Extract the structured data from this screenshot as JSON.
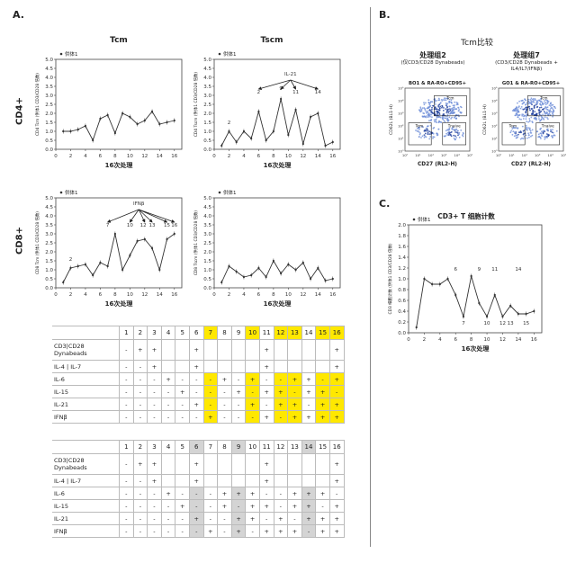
{
  "panel_a_letter": "A.",
  "panel_b_letter": "B.",
  "panel_c_letter": "C.",
  "row_labels": [
    "CD4+",
    "CD8+"
  ],
  "col_titles": [
    "Tcm",
    "Tscm"
  ],
  "legend_donor": "供体1",
  "chart_data": [
    {
      "type": "line",
      "id": "cd4-tcm",
      "title": "Tcm",
      "xlabel": "16次处理",
      "ylabel": "CD4 Tcm (供体1 CD3/CD28 倍数)",
      "ylim": [
        0,
        5
      ],
      "xlim": [
        0,
        17
      ],
      "xticks": [
        0,
        2,
        4,
        6,
        8,
        10,
        12,
        14,
        16
      ],
      "yticks": [
        0,
        0.5,
        1.0,
        1.5,
        2.0,
        2.5,
        3.0,
        3.5,
        4.0,
        4.5,
        5.0
      ],
      "series": [
        {
          "name": "供体1",
          "x": [
            1,
            2,
            3,
            4,
            5,
            6,
            7,
            8,
            9,
            10,
            11,
            12,
            13,
            14,
            15,
            16
          ],
          "y": [
            1.0,
            1.0,
            1.1,
            1.3,
            0.5,
            1.7,
            1.9,
            0.9,
            2.0,
            1.8,
            1.4,
            1.6,
            2.1,
            1.4,
            1.5,
            1.6
          ]
        }
      ],
      "annotations": []
    },
    {
      "type": "line",
      "id": "cd4-tscm",
      "title": "Tscm",
      "xlabel": "16次处理",
      "ylabel": "CD4 Tscm (供体1 CD3/CD28 倍数)",
      "ylim": [
        0,
        5
      ],
      "xlim": [
        0,
        17
      ],
      "xticks": [
        0,
        2,
        4,
        6,
        8,
        10,
        12,
        14,
        16
      ],
      "yticks": [
        0,
        0.5,
        1.0,
        1.5,
        2.0,
        2.5,
        3.0,
        3.5,
        4.0,
        4.5,
        5.0
      ],
      "series": [
        {
          "name": "供体1",
          "x": [
            1,
            2,
            3,
            4,
            5,
            6,
            7,
            8,
            9,
            10,
            11,
            12,
            13,
            14,
            15,
            16
          ],
          "y": [
            0.2,
            1.0,
            0.4,
            1.0,
            0.6,
            2.1,
            0.5,
            1.0,
            2.8,
            0.8,
            2.2,
            0.3,
            1.8,
            2.0,
            0.2,
            0.4
          ]
        }
      ],
      "annotations": [
        {
          "text": "IL-21",
          "x": 10.3,
          "y": 4.1
        },
        {
          "text": "2",
          "x": 6.0,
          "y": 3.1
        },
        {
          "text": "9",
          "x": 9.0,
          "y": 3.3
        },
        {
          "text": "11",
          "x": 11.0,
          "y": 3.1
        },
        {
          "text": "14",
          "x": 14.0,
          "y": 3.1
        },
        {
          "text": "2",
          "x": 2.0,
          "y": 1.4
        }
      ]
    },
    {
      "type": "line",
      "id": "cd8-tcm",
      "title": "",
      "xlabel": "16次处理",
      "ylabel": "CD8 Tcm (供体1 CD3/CD28 倍数)",
      "ylim": [
        0,
        5
      ],
      "xlim": [
        0,
        17
      ],
      "xticks": [
        0,
        2,
        4,
        6,
        8,
        10,
        12,
        14,
        16
      ],
      "yticks": [
        0,
        0.5,
        1.0,
        1.5,
        2.0,
        2.5,
        3.0,
        3.5,
        4.0,
        4.5,
        5.0
      ],
      "series": [
        {
          "name": "供体1",
          "x": [
            1,
            2,
            3,
            4,
            5,
            6,
            7,
            8,
            9,
            10,
            11,
            12,
            13,
            14,
            15,
            16
          ],
          "y": [
            0.3,
            1.1,
            1.2,
            1.3,
            0.7,
            1.4,
            1.2,
            3.0,
            1.0,
            1.8,
            2.6,
            2.7,
            2.2,
            1.0,
            2.7,
            3.0
          ]
        }
      ],
      "annotations": [
        {
          "text": "IFNβ",
          "x": 11.2,
          "y": 4.6
        },
        {
          "text": "7",
          "x": 7.0,
          "y": 3.4
        },
        {
          "text": "10",
          "x": 10.0,
          "y": 3.4
        },
        {
          "text": "12",
          "x": 11.8,
          "y": 3.4
        },
        {
          "text": "13",
          "x": 13.0,
          "y": 3.4
        },
        {
          "text": "15",
          "x": 15.0,
          "y": 3.4
        },
        {
          "text": "16",
          "x": 16.0,
          "y": 3.4
        },
        {
          "text": "2",
          "x": 2.0,
          "y": 1.5
        }
      ]
    },
    {
      "type": "line",
      "id": "cd8-tscm",
      "title": "",
      "xlabel": "16次处理",
      "ylabel": "CD8 Tscm (供体1 CD3/CD28 倍数)",
      "ylim": [
        0,
        5
      ],
      "xlim": [
        0,
        17
      ],
      "xticks": [
        0,
        2,
        4,
        6,
        8,
        10,
        12,
        14,
        16
      ],
      "yticks": [
        0,
        0.5,
        1.0,
        1.5,
        2.0,
        2.5,
        3.0,
        3.5,
        4.0,
        4.5,
        5.0
      ],
      "series": [
        {
          "name": "供体1",
          "x": [
            1,
            2,
            3,
            4,
            5,
            6,
            7,
            8,
            9,
            10,
            11,
            12,
            13,
            14,
            15,
            16
          ],
          "y": [
            0.3,
            1.2,
            0.9,
            0.6,
            0.7,
            1.1,
            0.6,
            1.5,
            0.8,
            1.3,
            1.0,
            1.4,
            0.5,
            1.1,
            0.4,
            0.5
          ]
        }
      ],
      "annotations": []
    },
    {
      "type": "line",
      "id": "cd3-count",
      "title": "CD3+ T 细胞计数",
      "xlabel": "16次处理",
      "ylabel": "CD3 细胞计数 (供体1 CD3/CD28 倍数)",
      "ylim": [
        0,
        2.0
      ],
      "xlim": [
        0,
        17
      ],
      "xticks": [
        0,
        2,
        4,
        6,
        8,
        10,
        12,
        14,
        16
      ],
      "yticks": [
        0,
        0.2,
        0.4,
        0.6,
        0.8,
        1.0,
        1.2,
        1.4,
        1.6,
        1.8,
        2.0
      ],
      "series": [
        {
          "name": "供体1",
          "x": [
            1,
            2,
            3,
            4,
            5,
            6,
            7,
            8,
            9,
            10,
            11,
            12,
            13,
            14,
            15,
            16
          ],
          "y": [
            0.1,
            1.0,
            0.9,
            0.9,
            1.0,
            0.7,
            0.3,
            1.05,
            0.55,
            0.3,
            0.7,
            0.3,
            0.5,
            0.35,
            0.35,
            0.4
          ]
        }
      ],
      "annotations": [
        {
          "text": "6",
          "x": 6.0,
          "y": 1.15
        },
        {
          "text": "9",
          "x": 9.0,
          "y": 1.15
        },
        {
          "text": "11",
          "x": 11.0,
          "y": 1.15
        },
        {
          "text": "14",
          "x": 14.0,
          "y": 1.15
        },
        {
          "text": "7",
          "x": 7.0,
          "y": 0.15
        },
        {
          "text": "10",
          "x": 10.0,
          "y": 0.15
        },
        {
          "text": "12",
          "x": 12.0,
          "y": 0.15
        },
        {
          "text": "13",
          "x": 13.0,
          "y": 0.15
        },
        {
          "text": "15",
          "x": 15.0,
          "y": 0.15
        }
      ]
    }
  ],
  "panel_b": {
    "title": "Tcm比较",
    "groups": [
      {
        "heading": "处理组2",
        "subtitle": "(仅CD3/CD28 Dynabeads)",
        "gate": "BO1 & RA-RO+CD95+",
        "xlabel": "CD27 (RL2-H)",
        "ylabel": "CD62L (BL1-H)",
        "quadrants": [
          "Tcm",
          "Tem",
          "Tnaive"
        ]
      },
      {
        "heading": "处理组7",
        "subtitle": "(CD3/CD28 Dynabeads + IL4/IL7/IFNβ)",
        "gate": "GO1 & RA-RO+CD95+",
        "xlabel": "CD27 (RL2-H)",
        "ylabel": "CD62L (BL1-H)",
        "quadrants": [
          "Tcm",
          "Tem",
          "Tnaive"
        ]
      }
    ],
    "axis_ticks": [
      "10⁰",
      "10¹",
      "10²",
      "10³",
      "10⁴",
      "10⁵"
    ]
  },
  "table1": {
    "columns": [
      "1",
      "2",
      "3",
      "4",
      "5",
      "6",
      "7",
      "8",
      "9",
      "10",
      "11",
      "12",
      "13",
      "14",
      "15",
      "16"
    ],
    "rows": [
      {
        "label": "CD3|CD28 Dynabeads",
        "cells": [
          "-",
          "+",
          "+",
          "",
          "",
          "+",
          "",
          "",
          "",
          "",
          "+",
          "",
          "",
          "",
          "",
          "+"
        ]
      },
      {
        "label": "IL-4 | IL-7",
        "cells": [
          "-",
          "-",
          "+",
          "",
          "",
          "+",
          "",
          "",
          "",
          "",
          "+",
          "",
          "",
          "",
          "",
          "+"
        ]
      },
      {
        "label": "IL-6",
        "cells": [
          "-",
          "-",
          "-",
          "+",
          "-",
          "-",
          "-",
          "+",
          "-",
          "+",
          "-",
          "-",
          "+",
          "+",
          "-",
          "+"
        ]
      },
      {
        "label": "IL-15",
        "cells": [
          "-",
          "-",
          "-",
          "-",
          "+",
          "-",
          "-",
          "-",
          "+",
          "-",
          "+",
          "+",
          "-",
          "+",
          "+",
          "-"
        ]
      },
      {
        "label": "IL-21",
        "cells": [
          "-",
          "-",
          "-",
          "-",
          "-",
          "+",
          "-",
          "-",
          "-",
          "+",
          "-",
          "+",
          "+",
          "-",
          "+",
          "+"
        ]
      },
      {
        "label": "IFNβ",
        "cells": [
          "-",
          "-",
          "-",
          "-",
          "-",
          "-",
          "+",
          "-",
          "-",
          "-",
          "+",
          "-",
          "+",
          "+",
          "+",
          "+"
        ]
      }
    ]
  },
  "table2": {
    "columns": [
      "1",
      "2",
      "3",
      "4",
      "5",
      "6",
      "7",
      "8",
      "9",
      "10",
      "11",
      "12",
      "13",
      "14",
      "15",
      "16"
    ],
    "rows": [
      {
        "label": "CD3|CD28 Dynabeads",
        "cells": [
          "-",
          "+",
          "+",
          "",
          "",
          "+",
          "",
          "",
          "",
          "",
          "+",
          "",
          "",
          "",
          "",
          "+"
        ]
      },
      {
        "label": "IL-4 | IL-7",
        "cells": [
          "-",
          "-",
          "+",
          "",
          "",
          "+",
          "",
          "",
          "",
          "",
          "+",
          "",
          "",
          "",
          "",
          "+"
        ]
      },
      {
        "label": "IL-6",
        "cells": [
          "-",
          "-",
          "-",
          "+",
          "-",
          "-",
          "-",
          "+",
          "+",
          "+",
          "-",
          "-",
          "+",
          "+",
          "+",
          "-"
        ]
      },
      {
        "label": "IL-15",
        "cells": [
          "-",
          "-",
          "-",
          "-",
          "+",
          "-",
          "-",
          "+",
          "-",
          "+",
          "+",
          "-",
          "+",
          "+",
          "-",
          "+"
        ]
      },
      {
        "label": "IL-21",
        "cells": [
          "-",
          "-",
          "-",
          "-",
          "-",
          "+",
          "-",
          "-",
          "+",
          "+",
          "-",
          "+",
          "-",
          "+",
          "+",
          "+"
        ]
      },
      {
        "label": "IFNβ",
        "cells": [
          "-",
          "-",
          "-",
          "-",
          "-",
          "-",
          "+",
          "-",
          "+",
          "-",
          "+",
          "+",
          "+",
          "-",
          "+",
          "+"
        ]
      }
    ]
  },
  "colors": {
    "yellow": "#ffe800",
    "gray": "#d4d4d4",
    "line": "#333333",
    "flow_blue": "#2a4fb0"
  }
}
